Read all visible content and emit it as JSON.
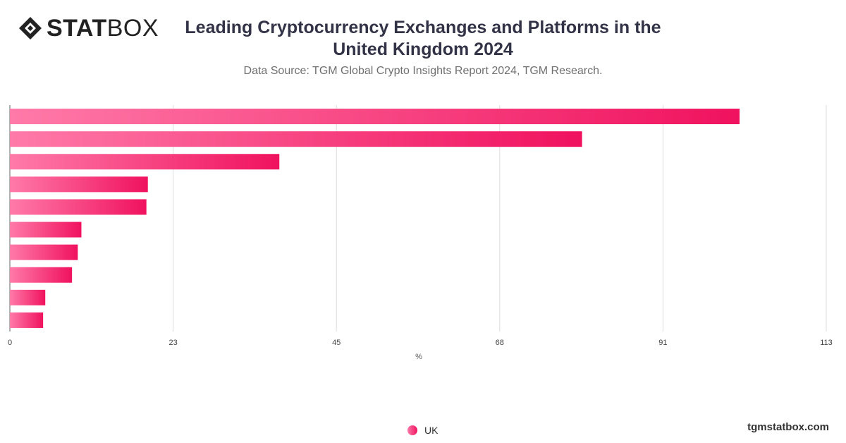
{
  "logo": {
    "stat": "STAT",
    "box": "BOX"
  },
  "header": {
    "title": "Leading Cryptocurrency Exchanges and Platforms in the United Kingdom 2024",
    "subtitle": "Data Source: TGM Global Crypto Insights Report 2024, TGM Research."
  },
  "footer": {
    "site": "tgmstatbox.com"
  },
  "chart_data": {
    "type": "bar",
    "orientation": "horizontal",
    "categories": [
      "",
      "",
      "",
      "",
      "",
      "",
      "",
      "",
      "",
      ""
    ],
    "series": [
      {
        "name": "UK",
        "values": [
          101,
          79.2,
          37.3,
          19.1,
          18.9,
          9.9,
          9.4,
          8.6,
          4.9,
          4.6
        ]
      }
    ],
    "xlabel": "%",
    "xlim": [
      0,
      113
    ],
    "ticks": [
      "0",
      "23",
      "45",
      "68",
      "91",
      "113"
    ],
    "grid": true,
    "legend": "bottom-center",
    "colors": {
      "bar_start": "#ff7aa8",
      "bar_end": "#f0125e",
      "grid": "#dddddd"
    }
  }
}
